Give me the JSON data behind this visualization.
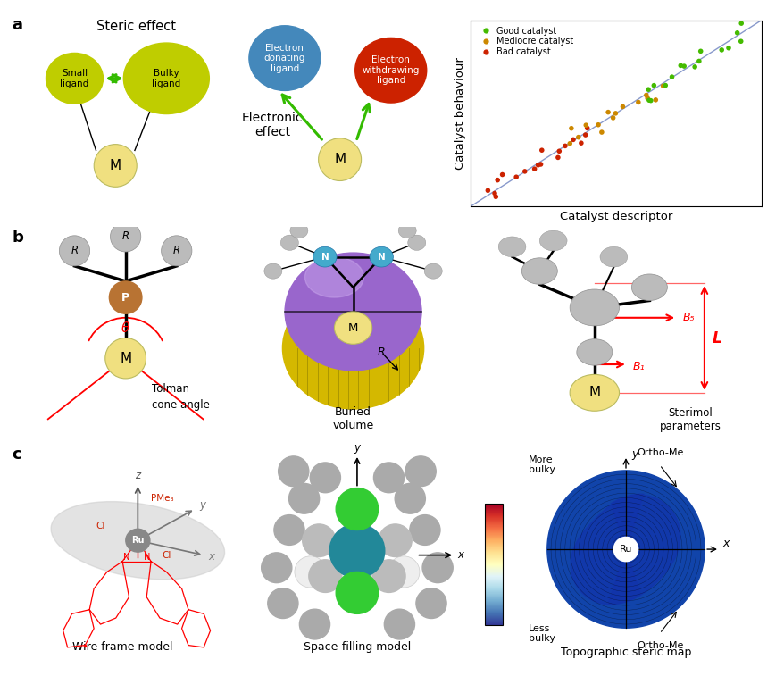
{
  "panel_a_label": "a",
  "panel_b_label": "b",
  "panel_c_label": "c",
  "steric_title": "Steric effect",
  "small_ligand_text": "Small\nligand",
  "bulky_ligand_text": "Bulky\nligand",
  "electron_donating_text": "Electron\ndonating\nligand",
  "electron_withdrawing_text": "Electron\nwithdrawing\nligand",
  "electronic_effect_text": "Electronic\neffect",
  "M_label": "M",
  "good_catalyst": "Good catalyst",
  "mediocre_catalyst": "Mediocre catalyst",
  "bad_catalyst": "Bad catalyst",
  "xlabel": "Catalyst descriptor",
  "ylabel": "Catalyst behaviour",
  "yellow_green_color": "#bfcd00",
  "light_yellow_color": "#f0e080",
  "blue_color": "#4488bb",
  "red_color": "#cc2200",
  "green_arrow_color": "#33bb00",
  "good_color": "#44bb00",
  "mediocre_color": "#cc8800",
  "bad_color": "#cc2200",
  "diagonal_color": "#8899cc",
  "tolman_text1": "Tolman",
  "tolman_text2": "cone angle",
  "buried_text1": "Buried",
  "buried_text2": "volume",
  "sterimol_text1": "Sterimol",
  "sterimol_text2": "parameters",
  "L_label": "L",
  "B1_label": "B₁",
  "B5_label": "B₅",
  "R_label": "R",
  "theta_label": "θ",
  "P_label": "P",
  "N_label": "N",
  "wire_text": "Wire frame model",
  "space_text": "Space-filling model",
  "topo_text": "Topographic steric map",
  "more_bulky": "More\nbulky",
  "less_bulky": "Less\nbulky",
  "ortho_me_top": "Ortho-Me",
  "ortho_me_bottom": "Ortho-Me",
  "Ru_label": "Ru",
  "y_label": "y",
  "x_label": "x",
  "z_label": "z",
  "PMe3_label": "PMe₃",
  "Cl_label": "Cl",
  "gray_atom": "#bbbbbb",
  "gold_color": "#cc8800",
  "purple_color": "#9966cc",
  "gold_sphere": "#d4b800"
}
